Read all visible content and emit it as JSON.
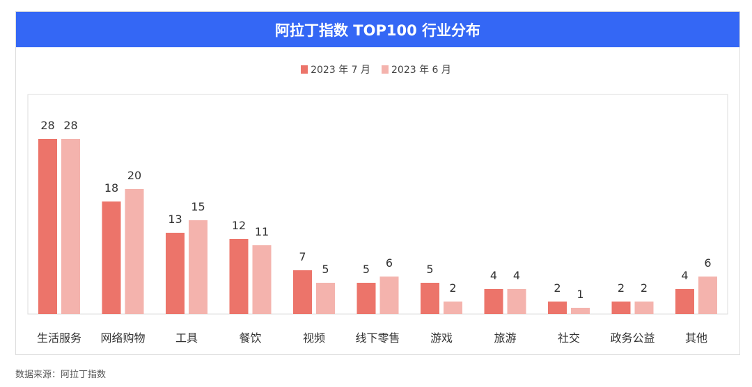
{
  "colors": {
    "header": "#3467f5",
    "july": "#ec746a",
    "june": "#f4b3ad"
  },
  "chart_data": {
    "type": "bar",
    "title": "阿拉丁指数 TOP100 行业分布",
    "categories": [
      "生活服务",
      "网络购物",
      "工具",
      "餐饮",
      "视频",
      "线下零售",
      "游戏",
      "旅游",
      "社交",
      "政务公益",
      "其他"
    ],
    "series": [
      {
        "name": "2023 年 7 月",
        "values": [
          28,
          18,
          13,
          12,
          7,
          5,
          5,
          4,
          2,
          2,
          4
        ]
      },
      {
        "name": "2023 年 6 月",
        "values": [
          28,
          20,
          15,
          11,
          5,
          6,
          2,
          4,
          1,
          2,
          6
        ]
      }
    ],
    "ylim": [
      0,
      35
    ],
    "grid": false,
    "legend": "top-center"
  },
  "source": "数据来源：阿拉丁指数"
}
